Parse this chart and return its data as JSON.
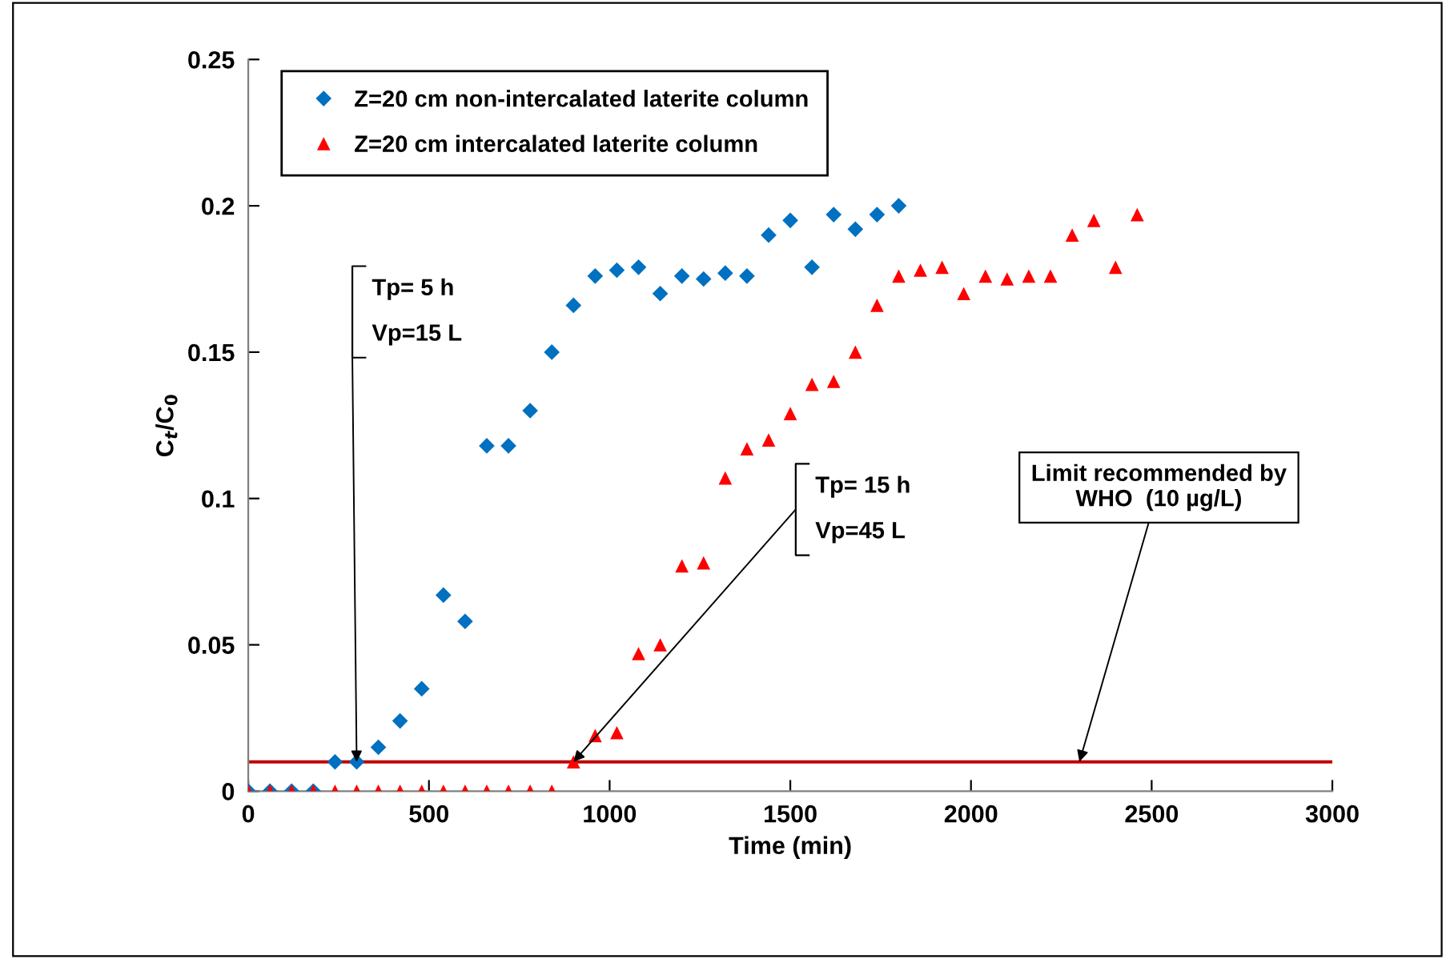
{
  "chart_data": {
    "type": "scatter",
    "xlabel": "Time (min)",
    "ylabel": "C$_{t}$/C$_{0}$",
    "xlim": [
      0,
      3000
    ],
    "xticks": [
      0,
      500,
      1000,
      1500,
      2000,
      2500,
      3000
    ],
    "ylim": [
      0,
      0.25
    ],
    "yticks": [
      0,
      0.05,
      0.1,
      0.15,
      0.2,
      0.25
    ],
    "legend": "top left",
    "series": [
      {
        "name": "Z=20 cm non-intercalated laterite column",
        "color": "#0070c0",
        "marker": "diamond",
        "x": [
          0,
          60,
          120,
          180,
          240,
          300,
          360,
          420,
          480,
          540,
          600,
          660,
          720,
          780,
          840,
          900,
          960,
          1020,
          1080,
          1140,
          1200,
          1260,
          1320,
          1380,
          1440,
          1500,
          1560,
          1620,
          1680,
          1740,
          1800
        ],
        "values": [
          0,
          0,
          0,
          0,
          0.01,
          0.01,
          0.015,
          0.024,
          0.035,
          0.067,
          0.058,
          0.118,
          0.118,
          0.13,
          0.15,
          0.166,
          0.176,
          0.178,
          0.179,
          0.17,
          0.176,
          0.175,
          0.177,
          0.176,
          0.19,
          0.195,
          0.179,
          0.197,
          0.192,
          0.197,
          0.2
        ]
      },
      {
        "name": "Z=20 cm intercalated laterite column",
        "color": "#ff0000",
        "marker": "triangle",
        "x": [
          0,
          60,
          120,
          180,
          240,
          300,
          360,
          420,
          480,
          540,
          600,
          660,
          720,
          780,
          840,
          900,
          960,
          1020,
          1080,
          1140,
          1200,
          1260,
          1320,
          1380,
          1440,
          1500,
          1560,
          1620,
          1680,
          1740,
          1800,
          1860,
          1920,
          1980,
          2040,
          2100,
          2160,
          2220,
          2280,
          2340,
          2400,
          2460
        ],
        "values": [
          0,
          0,
          0,
          0,
          0,
          0,
          0,
          0,
          0,
          0,
          0,
          0,
          0,
          0,
          0,
          0.01,
          0.019,
          0.02,
          0.047,
          0.05,
          0.077,
          0.078,
          0.107,
          0.117,
          0.12,
          0.129,
          0.139,
          0.14,
          0.15,
          0.166,
          0.176,
          0.178,
          0.179,
          0.17,
          0.176,
          0.175,
          0.176,
          0.176,
          0.19,
          0.195,
          0.179,
          0.197
        ]
      }
    ],
    "ref_lines": [
      {
        "axis": "y",
        "value": 0.01,
        "label": "Limit recommended by\nWHO  (10 µg/L)",
        "color": "#c00000"
      }
    ],
    "annotations": [
      {
        "text": "Tp= 5 h\nVp=15 L",
        "x": 300,
        "y": 0.01
      },
      {
        "text": "Tp= 15 h\nVp=45 L",
        "x": 900,
        "y": 0.01
      }
    ]
  }
}
